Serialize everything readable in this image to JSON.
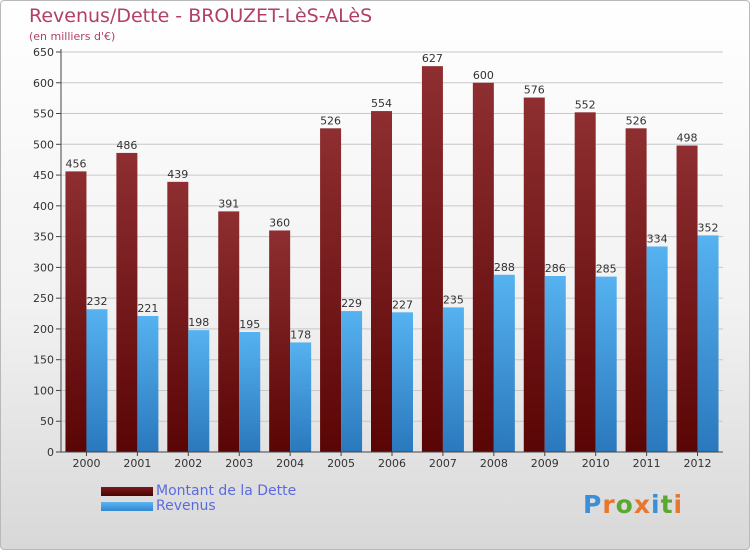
{
  "header": {
    "title": "Revenus/Dette - BROUZET-LèS-ALèS",
    "subtitle": "(en milliers d'€)"
  },
  "legend": {
    "dette_label": "Montant de la Dette",
    "revenus_label": "Revenus"
  },
  "logo": {
    "text": "Proxiti"
  },
  "colors": {
    "title": "#b24062",
    "dette_bar": "#8b2a2d",
    "revenus_bar": "#4aa3e6",
    "legend_text": "#5a6be0"
  },
  "chart_data": {
    "type": "bar",
    "categories": [
      "2000",
      "2001",
      "2002",
      "2003",
      "2004",
      "2005",
      "2006",
      "2007",
      "2008",
      "2009",
      "2010",
      "2011",
      "2012"
    ],
    "series": [
      {
        "name": "Montant de la Dette",
        "values": [
          456,
          486,
          439,
          391,
          360,
          526,
          554,
          627,
          600,
          576,
          552,
          526,
          498
        ]
      },
      {
        "name": "Revenus",
        "values": [
          232,
          221,
          198,
          195,
          178,
          229,
          227,
          235,
          288,
          286,
          285,
          334,
          352
        ]
      }
    ],
    "yticks": [
      0,
      50,
      100,
      150,
      200,
      250,
      300,
      350,
      400,
      450,
      500,
      550,
      600,
      650
    ],
    "ylim": [
      0,
      650
    ],
    "grid": true,
    "legend_position": "bottom-left"
  }
}
